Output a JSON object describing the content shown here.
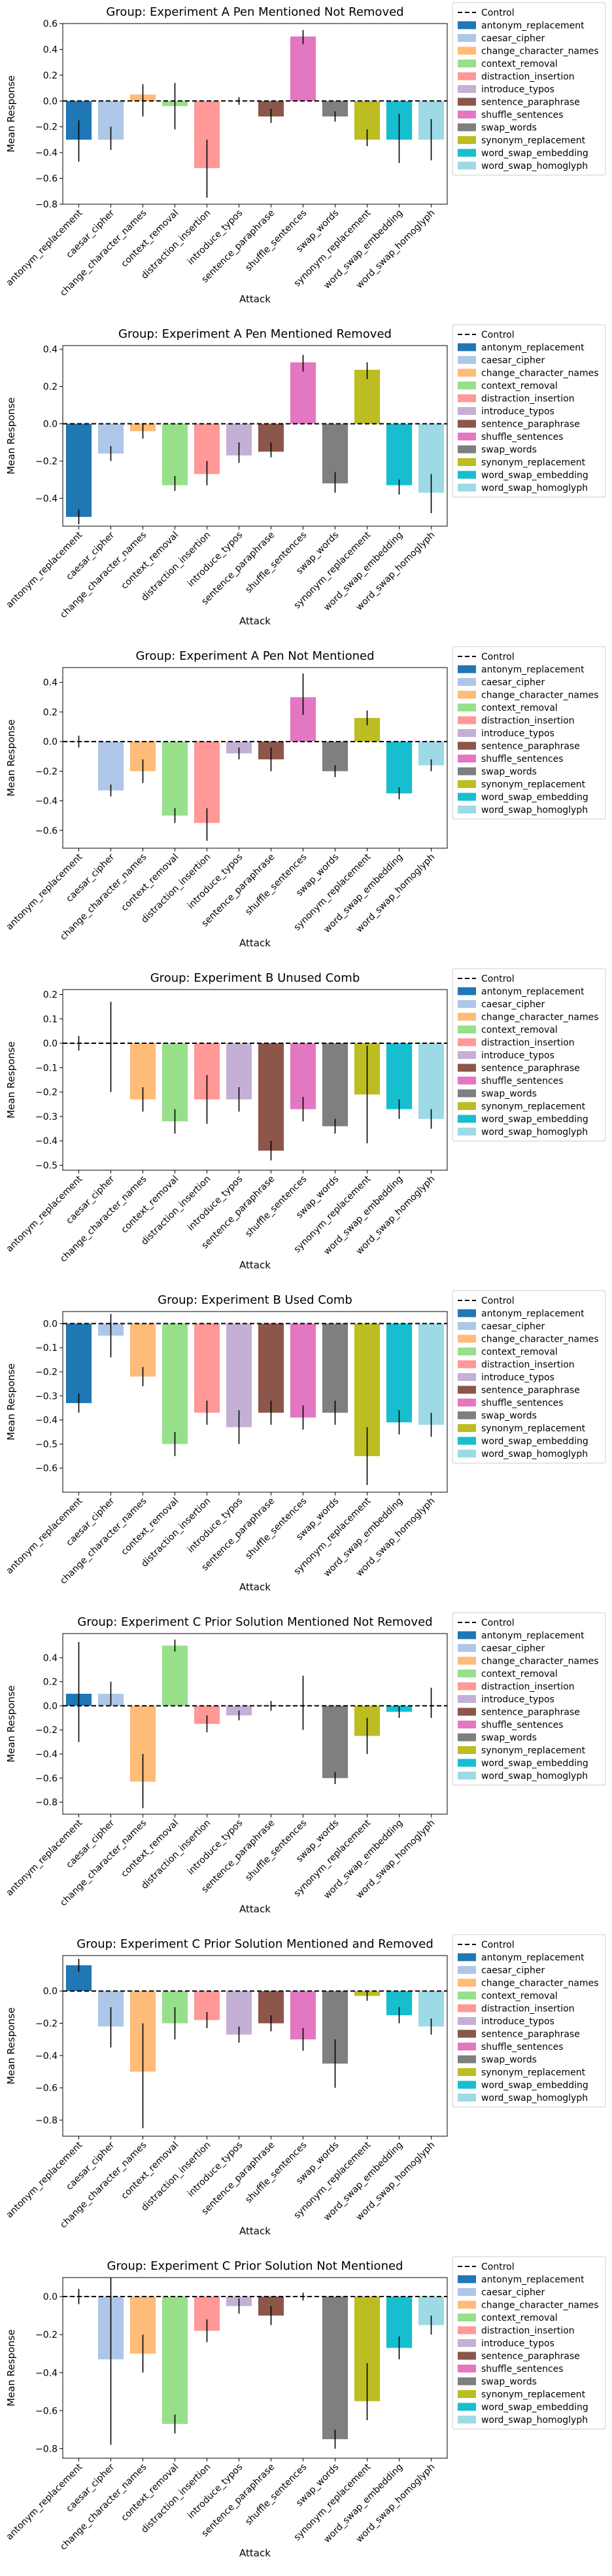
{
  "chart_data": [
    {
      "type": "bar",
      "title": "Group: Experiment A Pen Mentioned Not Removed",
      "xlabel": "Attack",
      "ylabel": "Mean Response",
      "ylim": [
        -0.8,
        0.6
      ],
      "yticks": [
        -0.8,
        -0.6,
        -0.4,
        -0.2,
        0.0,
        0.2,
        0.4,
        0.6
      ],
      "control": 0.0,
      "categories": [
        "antonym_replacement",
        "caesar_cipher",
        "change_character_names",
        "context_removal",
        "distraction_insertion",
        "introduce_typos",
        "sentence_paraphrase",
        "shuffle_sentences",
        "swap_words",
        "synonym_replacement",
        "word_swap_embedding",
        "word_swap_homoglyph"
      ],
      "values": [
        -0.3,
        -0.3,
        0.05,
        -0.04,
        -0.52,
        0.0,
        -0.12,
        0.5,
        -0.12,
        -0.3,
        -0.3,
        -0.3
      ],
      "errors": [
        [
          -0.47,
          -0.15
        ],
        [
          -0.38,
          -0.2
        ],
        [
          -0.12,
          0.13
        ],
        [
          -0.22,
          0.14
        ],
        [
          -0.75,
          -0.3
        ],
        [
          -0.03,
          0.03
        ],
        [
          -0.17,
          -0.06
        ],
        [
          0.44,
          0.55
        ],
        [
          -0.16,
          -0.08
        ],
        [
          -0.35,
          -0.22
        ],
        [
          -0.48,
          -0.1
        ],
        [
          -0.46,
          -0.14
        ]
      ],
      "legend_title": "",
      "legend": [
        "Control",
        "antonym_replacement",
        "caesar_cipher",
        "change_character_names",
        "context_removal",
        "distraction_insertion",
        "introduce_typos",
        "sentence_paraphrase",
        "shuffle_sentences",
        "swap_words",
        "synonym_replacement",
        "word_swap_embedding",
        "word_swap_homoglyph"
      ]
    },
    {
      "type": "bar",
      "title": "Group: Experiment A Pen Mentioned Removed",
      "xlabel": "Attack",
      "ylabel": "Mean Response",
      "ylim": [
        -0.55,
        0.42
      ],
      "yticks": [
        -0.4,
        -0.2,
        0.0,
        0.2,
        0.4
      ],
      "control": 0.0,
      "categories": [
        "antonym_replacement",
        "caesar_cipher",
        "change_character_names",
        "context_removal",
        "distraction_insertion",
        "introduce_typos",
        "sentence_paraphrase",
        "shuffle_sentences",
        "swap_words",
        "synonym_replacement",
        "word_swap_embedding",
        "word_swap_homoglyph"
      ],
      "values": [
        -0.5,
        -0.16,
        -0.04,
        -0.33,
        -0.27,
        -0.17,
        -0.15,
        0.33,
        -0.32,
        0.29,
        -0.33,
        -0.37
      ],
      "errors": [
        [
          -0.54,
          -0.46
        ],
        [
          -0.2,
          -0.12
        ],
        [
          -0.08,
          0.0
        ],
        [
          -0.36,
          -0.28
        ],
        [
          -0.33,
          -0.2
        ],
        [
          -0.21,
          -0.1
        ],
        [
          -0.18,
          -0.1
        ],
        [
          0.28,
          0.37
        ],
        [
          -0.37,
          -0.26
        ],
        [
          0.24,
          0.33
        ],
        [
          -0.38,
          -0.3
        ],
        [
          -0.48,
          -0.27
        ]
      ],
      "legend_title": "",
      "legend": [
        "Control",
        "antonym_replacement",
        "caesar_cipher",
        "change_character_names",
        "context_removal",
        "distraction_insertion",
        "introduce_typos",
        "sentence_paraphrase",
        "shuffle_sentences",
        "swap_words",
        "synonym_replacement",
        "word_swap_embedding",
        "word_swap_homoglyph"
      ]
    },
    {
      "type": "bar",
      "title": "Group: Experiment A Pen Not Mentioned",
      "xlabel": "Attack",
      "ylabel": "Mean Response",
      "ylim": [
        -0.72,
        0.5
      ],
      "yticks": [
        -0.6,
        -0.4,
        -0.2,
        0.0,
        0.2,
        0.4
      ],
      "control": 0.0,
      "categories": [
        "antonym_replacement",
        "caesar_cipher",
        "change_character_names",
        "context_removal",
        "distraction_insertion",
        "introduce_typos",
        "sentence_paraphrase",
        "shuffle_sentences",
        "swap_words",
        "synonym_replacement",
        "word_swap_embedding",
        "word_swap_homoglyph"
      ],
      "values": [
        0.0,
        -0.33,
        -0.2,
        -0.5,
        -0.55,
        -0.08,
        -0.12,
        0.3,
        -0.2,
        0.16,
        -0.35,
        -0.16
      ],
      "errors": [
        [
          -0.04,
          0.04
        ],
        [
          -0.37,
          -0.29
        ],
        [
          -0.28,
          -0.12
        ],
        [
          -0.55,
          -0.45
        ],
        [
          -0.67,
          -0.45
        ],
        [
          -0.12,
          -0.04
        ],
        [
          -0.2,
          -0.04
        ],
        [
          0.18,
          0.46
        ],
        [
          -0.24,
          -0.16
        ],
        [
          0.11,
          0.21
        ],
        [
          -0.39,
          -0.31
        ],
        [
          -0.2,
          -0.12
        ]
      ],
      "legend_title": "",
      "legend": [
        "Control",
        "antonym_replacement",
        "caesar_cipher",
        "change_character_names",
        "context_removal",
        "distraction_insertion",
        "introduce_typos",
        "sentence_paraphrase",
        "shuffle_sentences",
        "swap_words",
        "synonym_replacement",
        "word_swap_embedding",
        "word_swap_homoglyph"
      ]
    },
    {
      "type": "bar",
      "title": "Group: Experiment B Unused Comb",
      "xlabel": "Attack",
      "ylabel": "Mean Response",
      "ylim": [
        -0.52,
        0.22
      ],
      "yticks": [
        -0.5,
        -0.4,
        -0.3,
        -0.2,
        -0.1,
        0.0,
        0.1,
        0.2
      ],
      "control": 0.0,
      "categories": [
        "antonym_replacement",
        "caesar_cipher",
        "change_character_names",
        "context_removal",
        "distraction_insertion",
        "introduce_typos",
        "sentence_paraphrase",
        "shuffle_sentences",
        "swap_words",
        "synonym_replacement",
        "word_swap_embedding",
        "word_swap_homoglyph"
      ],
      "values": [
        0.0,
        0.0,
        -0.23,
        -0.32,
        -0.23,
        -0.23,
        -0.44,
        -0.27,
        -0.34,
        -0.21,
        -0.27,
        -0.31
      ],
      "errors": [
        [
          -0.03,
          0.03
        ],
        [
          -0.2,
          0.17
        ],
        [
          -0.28,
          -0.18
        ],
        [
          -0.37,
          -0.27
        ],
        [
          -0.33,
          -0.13
        ],
        [
          -0.28,
          -0.18
        ],
        [
          -0.48,
          -0.4
        ],
        [
          -0.32,
          -0.22
        ],
        [
          -0.37,
          -0.31
        ],
        [
          -0.41,
          -0.01
        ],
        [
          -0.31,
          -0.23
        ],
        [
          -0.35,
          -0.27
        ]
      ],
      "legend_title": "",
      "legend": [
        "Control",
        "antonym_replacement",
        "caesar_cipher",
        "change_character_names",
        "context_removal",
        "distraction_insertion",
        "introduce_typos",
        "sentence_paraphrase",
        "shuffle_sentences",
        "swap_words",
        "synonym_replacement",
        "word_swap_embedding",
        "word_swap_homoglyph"
      ]
    },
    {
      "type": "bar",
      "title": "Group: Experiment B Used Comb",
      "xlabel": "Attack",
      "ylabel": "Mean Response",
      "ylim": [
        -0.7,
        0.05
      ],
      "yticks": [
        -0.6,
        -0.5,
        -0.4,
        -0.3,
        -0.2,
        -0.1,
        0.0
      ],
      "control": 0.0,
      "categories": [
        "antonym_replacement",
        "caesar_cipher",
        "change_character_names",
        "context_removal",
        "distraction_insertion",
        "introduce_typos",
        "sentence_paraphrase",
        "shuffle_sentences",
        "swap_words",
        "synonym_replacement",
        "word_swap_embedding",
        "word_swap_homoglyph"
      ],
      "values": [
        -0.33,
        -0.05,
        -0.22,
        -0.5,
        -0.37,
        -0.43,
        -0.37,
        -0.39,
        -0.37,
        -0.55,
        -0.41,
        -0.42
      ],
      "errors": [
        [
          -0.37,
          -0.29
        ],
        [
          -0.14,
          0.04
        ],
        [
          -0.26,
          -0.18
        ],
        [
          -0.55,
          -0.45
        ],
        [
          -0.42,
          -0.32
        ],
        [
          -0.5,
          -0.36
        ],
        [
          -0.42,
          -0.32
        ],
        [
          -0.44,
          -0.34
        ],
        [
          -0.42,
          -0.32
        ],
        [
          -0.67,
          -0.43
        ],
        [
          -0.46,
          -0.36
        ],
        [
          -0.47,
          -0.37
        ]
      ],
      "legend_title": "",
      "legend": [
        "Control",
        "antonym_replacement",
        "caesar_cipher",
        "change_character_names",
        "context_removal",
        "distraction_insertion",
        "introduce_typos",
        "sentence_paraphrase",
        "shuffle_sentences",
        "swap_words",
        "synonym_replacement",
        "word_swap_embedding",
        "word_swap_homoglyph"
      ]
    },
    {
      "type": "bar",
      "title": "Group: Experiment C Prior Solution Mentioned Not Removed",
      "xlabel": "Attack",
      "ylabel": "Mean Response",
      "ylim": [
        -0.9,
        0.6
      ],
      "yticks": [
        -0.8,
        -0.6,
        -0.4,
        -0.2,
        0.0,
        0.2,
        0.4
      ],
      "control": 0.0,
      "categories": [
        "antonym_replacement",
        "caesar_cipher",
        "change_character_names",
        "context_removal",
        "distraction_insertion",
        "introduce_typos",
        "sentence_paraphrase",
        "shuffle_sentences",
        "swap_words",
        "synonym_replacement",
        "word_swap_embedding",
        "word_swap_homoglyph"
      ],
      "values": [
        0.1,
        0.1,
        -0.63,
        0.5,
        -0.15,
        -0.08,
        0.0,
        0.0,
        -0.6,
        -0.25,
        -0.05,
        0.0
      ],
      "errors": [
        [
          -0.3,
          0.53
        ],
        [
          0.0,
          0.2
        ],
        [
          -0.85,
          -0.4
        ],
        [
          0.45,
          0.55
        ],
        [
          -0.22,
          -0.08
        ],
        [
          -0.12,
          -0.04
        ],
        [
          -0.04,
          0.04
        ],
        [
          -0.2,
          0.25
        ],
        [
          -0.65,
          -0.55
        ],
        [
          -0.4,
          -0.1
        ],
        [
          -0.1,
          0.0
        ],
        [
          -0.1,
          0.15
        ]
      ],
      "legend_title": "",
      "legend": [
        "Control",
        "antonym_replacement",
        "caesar_cipher",
        "change_character_names",
        "context_removal",
        "distraction_insertion",
        "introduce_typos",
        "sentence_paraphrase",
        "shuffle_sentences",
        "swap_words",
        "synonym_replacement",
        "word_swap_embedding",
        "word_swap_homoglyph"
      ]
    },
    {
      "type": "bar",
      "title": "Group: Experiment C Prior Solution Mentioned and Removed",
      "xlabel": "Attack",
      "ylabel": "Mean Response",
      "ylim": [
        -0.9,
        0.22
      ],
      "yticks": [
        -0.8,
        -0.6,
        -0.4,
        -0.2,
        0.0
      ],
      "control": 0.0,
      "categories": [
        "antonym_replacement",
        "caesar_cipher",
        "change_character_names",
        "context_removal",
        "distraction_insertion",
        "introduce_typos",
        "sentence_paraphrase",
        "shuffle_sentences",
        "swap_words",
        "synonym_replacement",
        "word_swap_embedding",
        "word_swap_homoglyph"
      ],
      "values": [
        0.16,
        -0.22,
        -0.5,
        -0.2,
        -0.18,
        -0.27,
        -0.2,
        -0.3,
        -0.45,
        -0.03,
        -0.15,
        -0.22
      ],
      "errors": [
        [
          0.12,
          0.2
        ],
        [
          -0.35,
          -0.1
        ],
        [
          -0.85,
          -0.2
        ],
        [
          -0.3,
          -0.1
        ],
        [
          -0.23,
          -0.13
        ],
        [
          -0.32,
          -0.22
        ],
        [
          -0.25,
          -0.15
        ],
        [
          -0.37,
          -0.23
        ],
        [
          -0.6,
          -0.3
        ],
        [
          -0.06,
          0.0
        ],
        [
          -0.2,
          -0.1
        ],
        [
          -0.27,
          -0.17
        ]
      ],
      "legend_title": "",
      "legend": [
        "Control",
        "antonym_replacement",
        "caesar_cipher",
        "change_character_names",
        "context_removal",
        "distraction_insertion",
        "introduce_typos",
        "sentence_paraphrase",
        "shuffle_sentences",
        "swap_words",
        "synonym_replacement",
        "word_swap_embedding",
        "word_swap_homoglyph"
      ]
    },
    {
      "type": "bar",
      "title": "Group: Experiment C Prior Solution Not Mentioned",
      "xlabel": "Attack",
      "ylabel": "Mean Response",
      "ylim": [
        -0.85,
        0.1
      ],
      "yticks": [
        -0.8,
        -0.6,
        -0.4,
        -0.2,
        0.0
      ],
      "control": 0.0,
      "categories": [
        "antonym_replacement",
        "caesar_cipher",
        "change_character_names",
        "context_removal",
        "distraction_insertion",
        "introduce_typos",
        "sentence_paraphrase",
        "shuffle_sentences",
        "swap_words",
        "synonym_replacement",
        "word_swap_embedding",
        "word_swap_homoglyph"
      ],
      "values": [
        0.0,
        -0.33,
        -0.3,
        -0.67,
        -0.18,
        -0.05,
        -0.1,
        0.0,
        -0.75,
        -0.55,
        -0.27,
        -0.15
      ],
      "errors": [
        [
          -0.04,
          0.04
        ],
        [
          -0.78,
          0.1
        ],
        [
          -0.4,
          -0.2
        ],
        [
          -0.72,
          -0.62
        ],
        [
          -0.24,
          -0.12
        ],
        [
          -0.09,
          -0.01
        ],
        [
          -0.15,
          -0.05
        ],
        [
          -0.02,
          0.02
        ],
        [
          -0.8,
          -0.7
        ],
        [
          -0.65,
          -0.35
        ],
        [
          -0.33,
          -0.21
        ],
        [
          -0.2,
          -0.1
        ]
      ],
      "legend_title": "",
      "legend": [
        "Control",
        "antonym_replacement",
        "caesar_cipher",
        "change_character_names",
        "context_removal",
        "distraction_insertion",
        "introduce_typos",
        "sentence_paraphrase",
        "shuffle_sentences",
        "swap_words",
        "synonym_replacement",
        "word_swap_embedding",
        "word_swap_homoglyph"
      ]
    }
  ],
  "colors": [
    "#1f77b4",
    "#aec7e8",
    "#ffbb78",
    "#98df8a",
    "#ff9896",
    "#c5b0d5",
    "#8c564b",
    "#e377c2",
    "#7f7f7f",
    "#bcbd22",
    "#17becf",
    "#9edae5"
  ]
}
